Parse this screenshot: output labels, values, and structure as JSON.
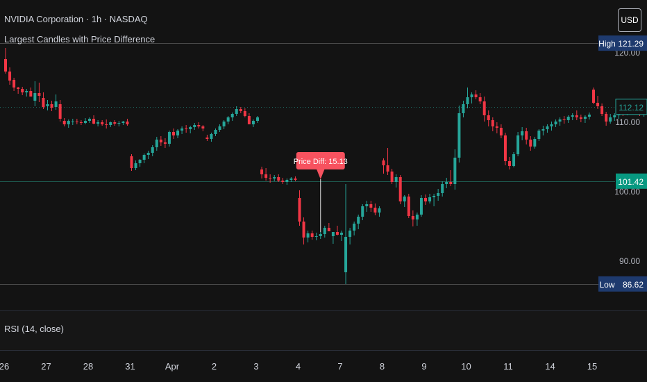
{
  "header": {
    "title": "NVIDIA Corporation · 1h · NASDAQ",
    "indicator": "Largest Candles with Price Difference",
    "currency": "USD"
  },
  "rsi_pane": {
    "label": "RSI (14, close)"
  },
  "colors": {
    "up": "#26a69a",
    "down": "#f23645",
    "background": "#131313",
    "text": "#d1d4dc",
    "label_dark_bg": "#1e3a6e"
  },
  "chart_data": {
    "type": "candlestick",
    "y_ticks": [
      {
        "value": 90,
        "label": "90.00"
      },
      {
        "value": 100,
        "label": "100.00"
      },
      {
        "value": 110,
        "label": "110.00"
      },
      {
        "value": 120,
        "label": "120.00"
      }
    ],
    "high_line": {
      "label": "High",
      "value": 121.29,
      "value_label": "121.29"
    },
    "low_line": {
      "label": "Low",
      "value": 86.62,
      "value_label": "86.62"
    },
    "mid_line": {
      "value": 101.42,
      "value_label": "101.42"
    },
    "last_price": {
      "value": 112.12,
      "value_label": "112.12"
    },
    "annotation": {
      "text": "Price Diff: 15.13",
      "candle_index": 75
    },
    "x_labels": [
      "26",
      "27",
      "28",
      "31",
      "Apr",
      "2",
      "3",
      "4",
      "7",
      "8",
      "9",
      "10",
      "11",
      "14",
      "15"
    ],
    "x_label_candle": [
      0,
      10,
      20,
      30,
      40,
      50,
      60,
      70,
      80,
      90,
      100,
      110,
      120,
      130,
      140
    ],
    "candles": [
      [
        119.0,
        120.6,
        116.9,
        117.2
      ],
      [
        117.2,
        117.8,
        115.3,
        115.9
      ],
      [
        116.0,
        116.3,
        114.4,
        114.9
      ],
      [
        114.9,
        115.0,
        114.0,
        114.7
      ],
      [
        114.7,
        115.0,
        113.8,
        114.2
      ],
      [
        114.2,
        114.7,
        113.6,
        114.4
      ],
      [
        114.4,
        114.9,
        113.7,
        113.6
      ],
      [
        113.0,
        115.8,
        112.2,
        114.1
      ],
      [
        114.1,
        115.6,
        112.8,
        113.7
      ],
      [
        113.4,
        114.2,
        111.8,
        112.1
      ],
      [
        112.2,
        113.1,
        111.6,
        112.5
      ],
      [
        112.5,
        113.0,
        111.5,
        112.0
      ],
      [
        112.1,
        113.9,
        111.7,
        112.9
      ],
      [
        112.5,
        113.1,
        110.0,
        110.4
      ],
      [
        110.1,
        110.5,
        109.3,
        109.6
      ],
      [
        109.6,
        110.3,
        109.1,
        110.1
      ],
      [
        110.0,
        110.4,
        109.5,
        110.0
      ],
      [
        110.0,
        110.4,
        109.6,
        109.9
      ],
      [
        109.9,
        110.2,
        109.5,
        109.8
      ],
      [
        109.8,
        110.5,
        109.6,
        110.1
      ],
      [
        110.1,
        110.6,
        109.8,
        110.4
      ],
      [
        110.4,
        110.9,
        109.6,
        109.7
      ],
      [
        109.7,
        110.2,
        109.3,
        109.9
      ],
      [
        109.9,
        110.2,
        109.4,
        109.6
      ],
      [
        109.6,
        110.3,
        109.0,
        109.5
      ],
      [
        109.5,
        110.0,
        109.2,
        109.9
      ],
      [
        109.9,
        110.2,
        109.4,
        109.7
      ],
      [
        109.7,
        110.1,
        109.3,
        109.8
      ],
      [
        109.8,
        110.1,
        109.5,
        110.0
      ],
      [
        110.0,
        110.4,
        109.4,
        109.6
      ],
      [
        105.0,
        105.3,
        102.9,
        103.3
      ],
      [
        103.3,
        104.4,
        103.0,
        104.0
      ],
      [
        104.0,
        104.6,
        103.5,
        104.5
      ],
      [
        104.5,
        105.4,
        104.0,
        105.2
      ],
      [
        105.2,
        105.8,
        104.6,
        105.5
      ],
      [
        105.5,
        106.6,
        105.0,
        106.3
      ],
      [
        106.3,
        107.8,
        105.8,
        107.4
      ],
      [
        107.4,
        107.9,
        106.5,
        107.0
      ],
      [
        107.0,
        107.6,
        106.2,
        106.8
      ],
      [
        106.8,
        108.7,
        106.4,
        108.5
      ],
      [
        108.5,
        109.0,
        107.5,
        108.0
      ],
      [
        108.0,
        108.9,
        107.6,
        108.7
      ],
      [
        108.7,
        109.3,
        108.2,
        109.0
      ],
      [
        109.0,
        109.5,
        108.4,
        108.9
      ],
      [
        108.9,
        109.4,
        108.3,
        109.2
      ],
      [
        109.2,
        109.8,
        108.8,
        109.5
      ],
      [
        109.5,
        109.9,
        109.0,
        109.3
      ],
      [
        109.3,
        109.5,
        108.6,
        109.0
      ],
      [
        107.7,
        108.1,
        107.2,
        107.5
      ],
      [
        107.5,
        108.4,
        107.1,
        108.2
      ],
      [
        108.2,
        109.0,
        107.9,
        108.8
      ],
      [
        108.8,
        109.6,
        108.5,
        109.3
      ],
      [
        109.3,
        110.2,
        108.9,
        110.0
      ],
      [
        110.0,
        110.8,
        109.6,
        110.6
      ],
      [
        110.6,
        111.3,
        110.1,
        111.1
      ],
      [
        111.1,
        112.2,
        110.8,
        111.8
      ],
      [
        111.8,
        112.1,
        111.2,
        111.5
      ],
      [
        111.5,
        111.9,
        110.6,
        110.8
      ],
      [
        110.8,
        111.2,
        109.6,
        109.6
      ],
      [
        109.6,
        110.3,
        109.2,
        110.1
      ],
      [
        110.1,
        110.8,
        109.8,
        110.6
      ],
      [
        103.1,
        103.5,
        101.8,
        102.4
      ],
      [
        102.4,
        103.3,
        101.5,
        101.9
      ],
      [
        101.9,
        102.4,
        101.2,
        101.8
      ],
      [
        101.8,
        102.3,
        101.4,
        102.0
      ],
      [
        102.0,
        102.4,
        101.3,
        101.5
      ],
      [
        101.5,
        101.9,
        101.0,
        101.3
      ],
      [
        101.3,
        101.8,
        100.9,
        101.6
      ],
      [
        101.6,
        102.0,
        101.3,
        101.8
      ],
      [
        101.8,
        102.1,
        101.4,
        101.6
      ],
      [
        99.0,
        100.1,
        95.0,
        95.6
      ],
      [
        95.6,
        96.2,
        92.3,
        93.3
      ],
      [
        93.3,
        94.3,
        92.6,
        93.9
      ],
      [
        93.9,
        94.3,
        93.0,
        93.4
      ],
      [
        93.4,
        94.0,
        92.9,
        93.5
      ],
      [
        93.5,
        94.1,
        93.1,
        93.8
      ],
      [
        93.8,
        95.0,
        93.3,
        94.7
      ],
      [
        94.7,
        95.4,
        94.3,
        94.2
      ],
      [
        93.5,
        94.0,
        92.4,
        94.1
      ],
      [
        94.1,
        95.0,
        93.6,
        93.7
      ],
      [
        93.7,
        94.3,
        92.8,
        94.0
      ],
      [
        88.3,
        101.0,
        86.6,
        93.4
      ],
      [
        93.4,
        94.7,
        92.3,
        94.3
      ],
      [
        94.3,
        95.6,
        93.6,
        95.3
      ],
      [
        95.3,
        96.6,
        94.5,
        96.3
      ],
      [
        96.3,
        98.1,
        95.8,
        97.8
      ],
      [
        97.8,
        98.6,
        97.0,
        98.1
      ],
      [
        98.1,
        98.6,
        97.0,
        97.6
      ],
      [
        97.6,
        98.2,
        96.5,
        96.9
      ],
      [
        96.9,
        97.8,
        96.3,
        97.5
      ],
      [
        104.4,
        104.7,
        102.5,
        103.7
      ],
      [
        103.7,
        106.2,
        102.3,
        102.8
      ],
      [
        102.8,
        103.2,
        101.0,
        101.3
      ],
      [
        101.3,
        102.4,
        100.5,
        102.0
      ],
      [
        102.0,
        102.3,
        98.1,
        98.5
      ],
      [
        98.5,
        99.4,
        97.7,
        99.2
      ],
      [
        99.2,
        99.6,
        96.1,
        96.4
      ],
      [
        96.4,
        97.2,
        94.9,
        95.9
      ],
      [
        95.9,
        96.9,
        95.0,
        96.6
      ],
      [
        96.6,
        99.4,
        96.3,
        99.0
      ],
      [
        99.0,
        99.5,
        98.0,
        98.5
      ],
      [
        98.5,
        99.6,
        98.2,
        99.1
      ],
      [
        99.1,
        99.6,
        97.8,
        99.3
      ],
      [
        99.3,
        100.3,
        98.6,
        99.7
      ],
      [
        99.7,
        101.4,
        99.2,
        101.0
      ],
      [
        101.0,
        101.9,
        100.4,
        101.3
      ],
      [
        101.3,
        103.0,
        100.7,
        101.0
      ],
      [
        101.0,
        106.0,
        100.2,
        104.8
      ],
      [
        104.8,
        112.3,
        104.1,
        111.2
      ],
      [
        111.2,
        113.0,
        110.6,
        112.5
      ],
      [
        112.5,
        114.9,
        111.9,
        113.5
      ],
      [
        113.5,
        114.2,
        112.6,
        113.9
      ],
      [
        113.9,
        114.5,
        113.2,
        113.5
      ],
      [
        113.5,
        114.1,
        112.5,
        112.9
      ],
      [
        112.9,
        113.6,
        110.0,
        110.9
      ],
      [
        110.9,
        111.6,
        109.3,
        110.2
      ],
      [
        110.2,
        110.6,
        108.6,
        109.3
      ],
      [
        109.3,
        109.9,
        108.3,
        109.1
      ],
      [
        109.1,
        109.6,
        107.6,
        108.0
      ],
      [
        108.0,
        108.4,
        103.7,
        104.3
      ],
      [
        104.3,
        104.9,
        103.1,
        103.6
      ],
      [
        103.6,
        105.6,
        103.4,
        105.3
      ],
      [
        105.3,
        108.5,
        105.0,
        108.0
      ],
      [
        108.0,
        109.2,
        107.3,
        108.6
      ],
      [
        108.6,
        109.1,
        106.7,
        107.4
      ],
      [
        107.4,
        107.9,
        105.8,
        106.4
      ],
      [
        106.4,
        107.8,
        106.1,
        107.5
      ],
      [
        107.5,
        108.9,
        107.2,
        108.7
      ],
      [
        108.7,
        109.4,
        108.0,
        108.9
      ],
      [
        108.9,
        109.6,
        108.4,
        109.3
      ],
      [
        109.3,
        110.0,
        108.7,
        109.6
      ],
      [
        109.6,
        110.3,
        109.2,
        110.0
      ],
      [
        110.0,
        110.6,
        109.4,
        110.3
      ],
      [
        110.3,
        110.8,
        109.7,
        110.2
      ],
      [
        110.2,
        110.9,
        109.8,
        110.7
      ],
      [
        110.7,
        111.2,
        110.2,
        110.9
      ],
      [
        110.9,
        111.6,
        110.2,
        110.6
      ],
      [
        110.6,
        111.0,
        109.9,
        110.4
      ],
      [
        110.4,
        110.9,
        109.8,
        110.7
      ],
      [
        110.7,
        111.3,
        110.3,
        111.0
      ],
      [
        114.6,
        114.9,
        112.5,
        112.7
      ],
      [
        112.7,
        113.7,
        111.8,
        112.2
      ],
      [
        112.2,
        112.6,
        110.8,
        111.1
      ],
      [
        111.1,
        111.4,
        109.4,
        110.0
      ],
      [
        110.0,
        111.1,
        109.7,
        110.6
      ],
      [
        110.6,
        111.2,
        110.1,
        110.9
      ],
      [
        110.9,
        111.6,
        110.4,
        111.3
      ],
      [
        111.3,
        111.6,
        110.8,
        111.2
      ],
      [
        111.2,
        111.8,
        110.9,
        111.6
      ],
      [
        111.6,
        112.1,
        111.1,
        111.8
      ],
      [
        111.8,
        112.3,
        111.1,
        111.5
      ],
      [
        111.5,
        112.1,
        110.8,
        111.1
      ],
      [
        111.1,
        111.7,
        110.7,
        111.3
      ],
      [
        111.3,
        112.3,
        110.9,
        112.1
      ],
      [
        112.1,
        113.2,
        111.7,
        112.9
      ],
      [
        112.9,
        113.6,
        112.3,
        113.1
      ],
      [
        113.1,
        113.6,
        112.0,
        112.4
      ],
      [
        112.4,
        112.8,
        111.8,
        112.1
      ],
      [
        112.1,
        112.6,
        111.8,
        112.12
      ]
    ]
  }
}
